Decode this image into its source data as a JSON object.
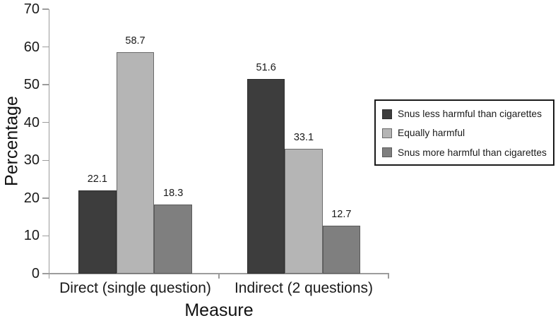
{
  "chart_data": {
    "type": "bar",
    "title": "",
    "xlabel": "Measure",
    "ylabel": "Percentage",
    "ylim": [
      0,
      70
    ],
    "yticks": [
      70,
      60,
      50,
      40,
      30,
      20,
      10,
      0
    ],
    "grid": false,
    "legend_position": "right",
    "categories": [
      "Direct (single question)",
      "Indirect (2 questions)"
    ],
    "series": [
      {
        "name": "Snus less harmful than cigarettes",
        "values": [
          22.1,
          51.6
        ],
        "color": "#3d3d3d",
        "border_color": "#2d2d2d"
      },
      {
        "name": "Equally harmful",
        "values": [
          58.7,
          33.1
        ],
        "color": "#b5b5b5",
        "border_color": "#6a6a6a"
      },
      {
        "name": "Snus more harmful than cigarettes",
        "values": [
          18.3,
          12.7
        ],
        "color": "#7f7f7f",
        "border_color": "#5a5a5a"
      }
    ],
    "axis_color": "#9c9c9c",
    "text_color": "#1a1a1a"
  }
}
